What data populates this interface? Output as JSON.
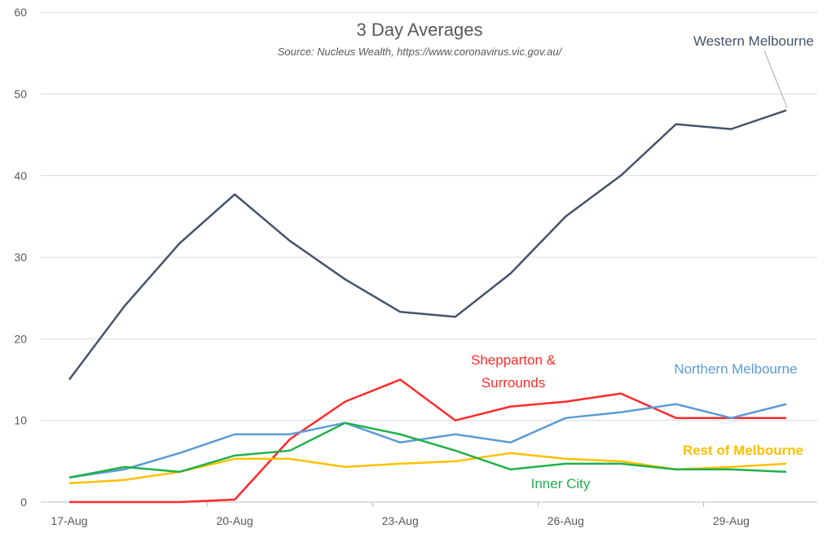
{
  "chart_data": {
    "type": "line",
    "title": "3 Day Averages",
    "subtitle": "Source: Nucleus Wealth, https://www.coronavirus.vic.gov.au/",
    "xlabel": "",
    "ylabel": "",
    "ylim": [
      0,
      60
    ],
    "yticks": [
      0,
      10,
      20,
      30,
      40,
      50,
      60
    ],
    "grid": true,
    "legend": "inline labels",
    "x": [
      "17-Aug",
      "18-Aug",
      "19-Aug",
      "20-Aug",
      "21-Aug",
      "22-Aug",
      "23-Aug",
      "24-Aug",
      "25-Aug",
      "26-Aug",
      "27-Aug",
      "28-Aug",
      "29-Aug",
      "30-Aug"
    ],
    "xtick_labels": [
      "17-Aug",
      "20-Aug",
      "23-Aug",
      "26-Aug",
      "29-Aug"
    ],
    "series": [
      {
        "name": "Western Melbourne",
        "color": "#44546a",
        "values": [
          15,
          24,
          31.7,
          37.7,
          32,
          27.3,
          23.3,
          22.7,
          28,
          35,
          40,
          46.3,
          45.7,
          48
        ]
      },
      {
        "name": "Shepparton & Surrounds",
        "label_lines": [
          "Shepparton &",
          "Surrounds"
        ],
        "color": "#ff2a2a",
        "values": [
          0,
          0,
          0,
          0.3,
          7.7,
          12.3,
          15,
          10,
          11.7,
          12.3,
          13.3,
          10.3,
          10.3,
          10.3
        ]
      },
      {
        "name": "Northern Melbourne",
        "color": "#5b9bd5",
        "values": [
          3,
          4,
          6,
          8.3,
          8.3,
          9.7,
          7.3,
          8.3,
          7.3,
          10.3,
          11,
          12,
          10.3,
          12
        ]
      },
      {
        "name": "Rest of Melbourne",
        "color": "#ffc000",
        "values": [
          2.3,
          2.7,
          3.7,
          5.3,
          5.3,
          4.3,
          4.7,
          5,
          6,
          5.3,
          5,
          4,
          4.3,
          4.7
        ]
      },
      {
        "name": "Inner City",
        "color": "#21b04b",
        "values": [
          3,
          4.3,
          3.7,
          5.7,
          6.3,
          9.7,
          8.3,
          6.3,
          4,
          4.7,
          4.7,
          4,
          4,
          3.7
        ]
      }
    ]
  }
}
